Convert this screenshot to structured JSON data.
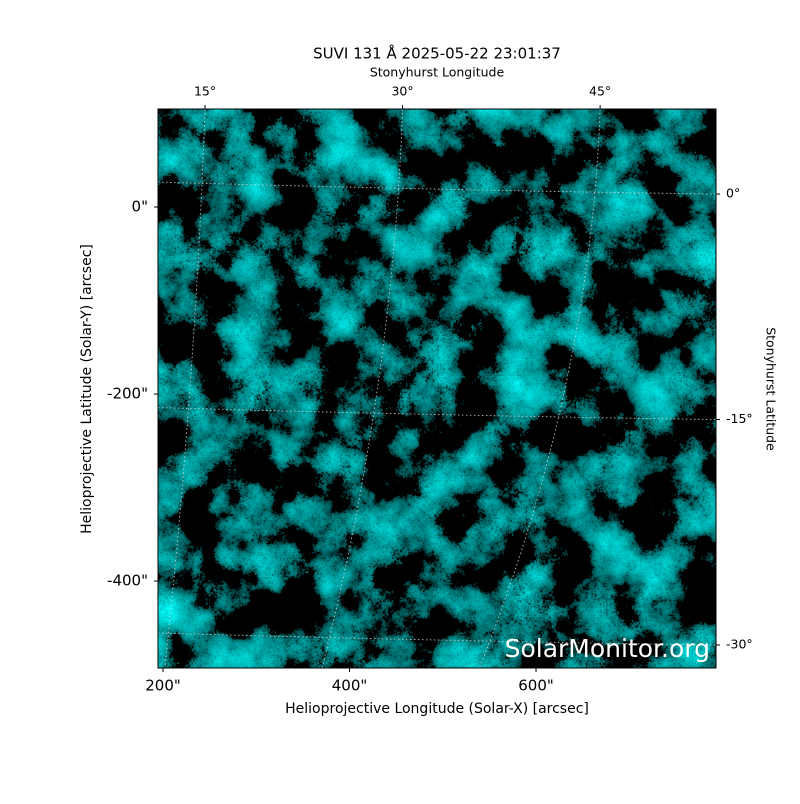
{
  "chart_data": {
    "type": "image",
    "title": "SUVI 131 Å 2025-05-22 23:01:37",
    "xlabel": "Helioprojective Longitude (Solar-X) [arcsec]",
    "ylabel": "Helioprojective Latitude (Solar-Y) [arcsec]",
    "x2label": "Stonyhurst Longitude",
    "y2label": "Stonyhurst Latitude",
    "watermark": "SolarMonitor.org",
    "xlim": [
      194.6,
      793
    ],
    "ylim": [
      -493,
      104.8
    ],
    "xticks": [
      {
        "value": 200,
        "label": "200\""
      },
      {
        "value": 400,
        "label": "400\""
      },
      {
        "value": 600,
        "label": "600\""
      }
    ],
    "yticks": [
      {
        "value": 0,
        "label": "0\""
      },
      {
        "value": -200,
        "label": "-200\""
      },
      {
        "value": -400,
        "label": "-400\""
      }
    ],
    "x2lim": [
      11.43,
      53.8
    ],
    "x2ticks": [
      {
        "value": 15,
        "label": "15°"
      },
      {
        "value": 30,
        "label": "30°"
      },
      {
        "value": 45,
        "label": "45°"
      }
    ],
    "y2lim": [
      -31.53,
      5.66
    ],
    "y2ticks": [
      {
        "value": 0,
        "label": "0°"
      },
      {
        "value": -15,
        "label": "-15°"
      },
      {
        "value": -30,
        "label": "-30°"
      }
    ],
    "grid": true,
    "color": "#00e0e0"
  }
}
